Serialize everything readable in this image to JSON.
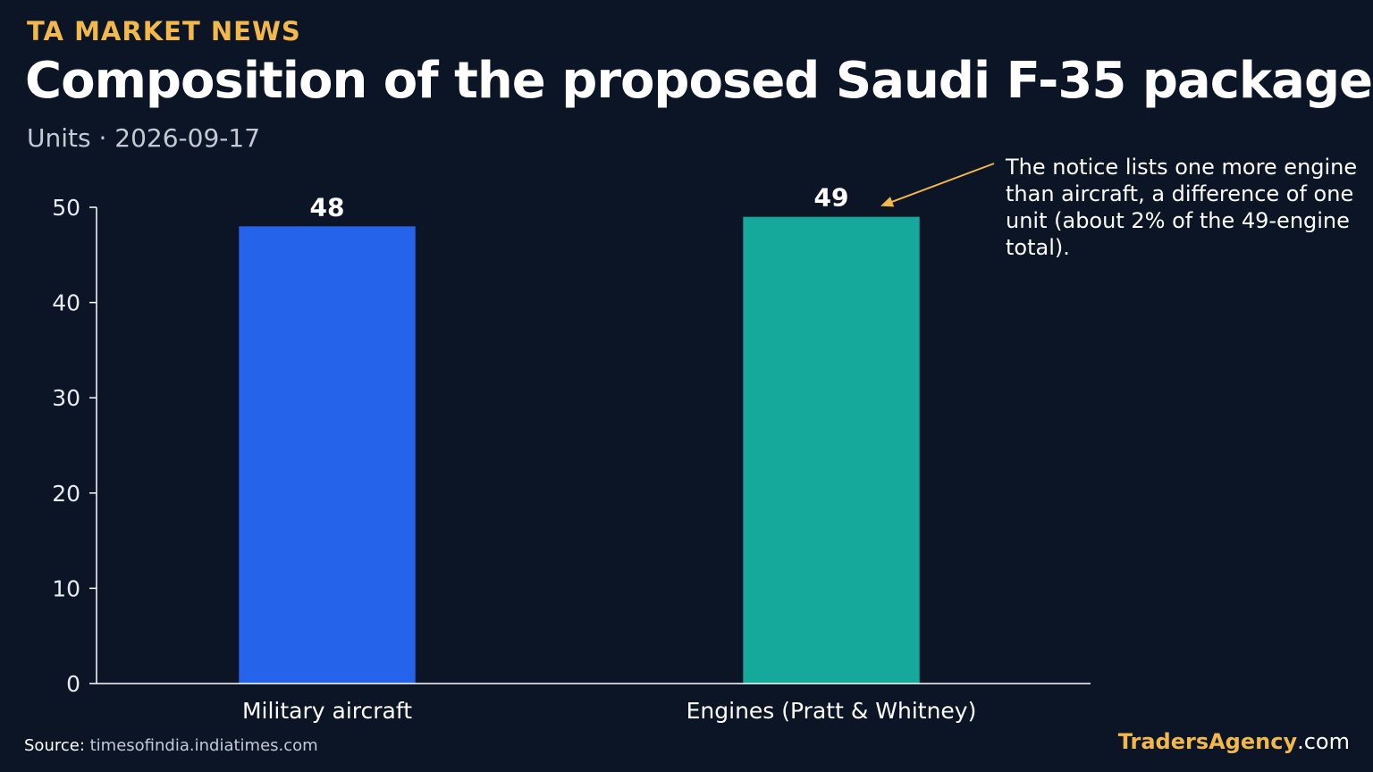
{
  "header": {
    "kicker": "TA MARKET NEWS",
    "title": "Composition of the proposed Saudi F-35 package",
    "subtitle": "Units · 2026-09-17"
  },
  "chart_data": {
    "type": "bar",
    "categories": [
      "Military aircraft",
      "Engines (Pratt & Whitney)"
    ],
    "values": [
      48,
      49
    ],
    "value_labels": [
      "48",
      "49"
    ],
    "bar_colors": [
      "#2563eb",
      "#14a99a"
    ],
    "ylim": [
      0,
      50
    ],
    "yticks": [
      0,
      10,
      20,
      30,
      40,
      50
    ],
    "ytick_labels": [
      "0",
      "10",
      "20",
      "30",
      "40",
      "50"
    ],
    "grid": false,
    "annotation": {
      "text": "The notice lists one more engine than aircraft, a difference of one unit (about 2% of the 49-engine total).",
      "target_category": "Engines (Pratt & Whitney)",
      "arrow_color": "#f2b849"
    }
  },
  "footer": {
    "source_label": "Source:",
    "source_url": "timesofindia.indiatimes.com",
    "brand_name": "TradersAgency",
    "brand_tld": ".com"
  }
}
